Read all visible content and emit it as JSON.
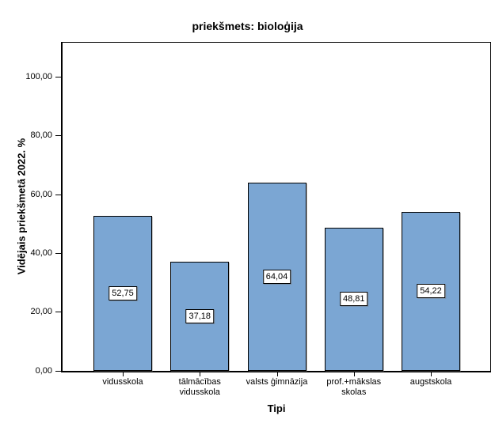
{
  "chart_data": {
    "type": "bar",
    "title": "priekšmets: bioloģija",
    "xlabel": "Tipi",
    "ylabel": "Vidējais priekšmetā 2022. %",
    "categories": [
      "vidusskola",
      "tālmācības vidusskola",
      "valsts ģimnāzija",
      "prof.+mākslas skolas",
      "augstskola"
    ],
    "values": [
      52.75,
      37.18,
      64.04,
      48.81,
      54.22
    ],
    "bar_labels": [
      "52,75",
      "37,18",
      "64,04",
      "48,81",
      "54,22"
    ],
    "ylim": [
      0,
      112
    ],
    "yticks": [
      0,
      20,
      40,
      60,
      80,
      100
    ],
    "ytick_labels": [
      "0,00",
      "20,00",
      "40,00",
      "60,00",
      "80,00",
      "100,00"
    ],
    "grid": false,
    "legend": "none",
    "bar_color": "#7BA6D3",
    "bar_border_color": "#000000",
    "label_box_bg": "#ffffff",
    "axis_color": "#000000"
  }
}
